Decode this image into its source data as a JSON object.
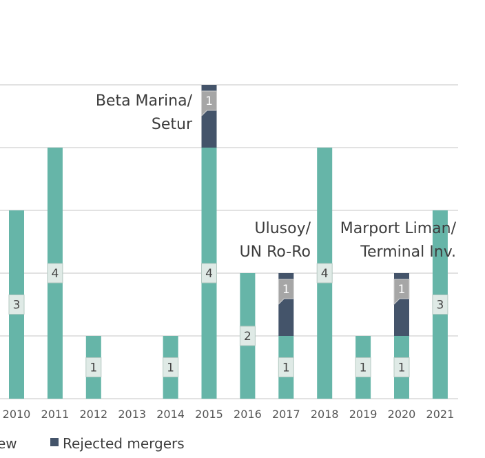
{
  "chart_data": {
    "type": "bar",
    "stacked": true,
    "categories": [
      "2010",
      "2011",
      "2012",
      "2013",
      "2014",
      "2015",
      "2016",
      "2017",
      "2018",
      "2019",
      "2020",
      "2021"
    ],
    "series": [
      {
        "name": "ew",
        "color": "#66b5a8",
        "values": [
          3,
          4,
          1,
          0,
          1,
          4,
          2,
          1,
          4,
          1,
          1,
          3
        ],
        "labels": [
          "3",
          "4",
          "1",
          "",
          "1",
          "4",
          "2",
          "1",
          "4",
          "1",
          "1",
          "3"
        ]
      },
      {
        "name": "Rejected mergers",
        "color": "#44546a",
        "values": [
          0,
          0,
          0,
          0,
          0,
          1,
          0,
          1,
          0,
          0,
          1,
          0
        ],
        "labels": [
          "",
          "",
          "",
          "",
          "",
          "1",
          "",
          "1",
          "",
          "",
          "1",
          ""
        ]
      }
    ],
    "ylim": [
      0,
      5
    ],
    "grid": true,
    "legend_position": "bottom",
    "annotations": [
      {
        "category": "2015",
        "lines": [
          "Beta Marina/",
          "Setur"
        ]
      },
      {
        "category": "2017",
        "lines": [
          "Ulusoy/",
          "UN Ro-Ro"
        ]
      },
      {
        "category": "2020",
        "lines": [
          "Marport Liman/",
          "Terminal Inv."
        ]
      }
    ]
  }
}
